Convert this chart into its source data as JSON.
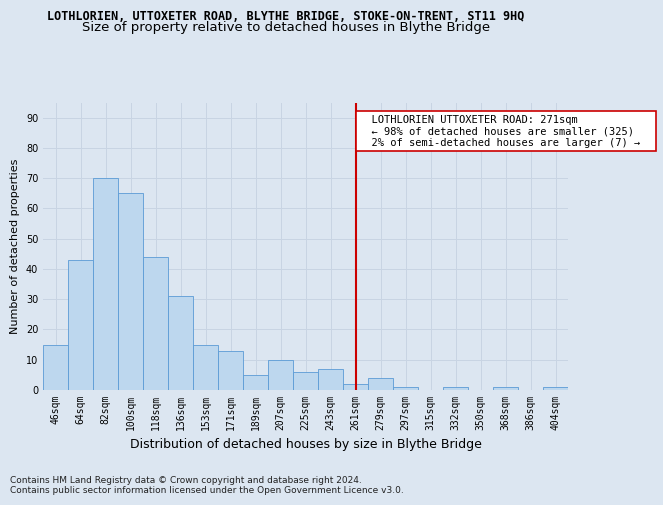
{
  "title": "LOTHLORIEN, UTTOXETER ROAD, BLYTHE BRIDGE, STOKE-ON-TRENT, ST11 9HQ",
  "subtitle": "Size of property relative to detached houses in Blythe Bridge",
  "xlabel": "Distribution of detached houses by size in Blythe Bridge",
  "ylabel": "Number of detached properties",
  "categories": [
    "46sqm",
    "64sqm",
    "82sqm",
    "100sqm",
    "118sqm",
    "136sqm",
    "153sqm",
    "171sqm",
    "189sqm",
    "207sqm",
    "225sqm",
    "243sqm",
    "261sqm",
    "279sqm",
    "297sqm",
    "315sqm",
    "332sqm",
    "350sqm",
    "368sqm",
    "386sqm",
    "404sqm"
  ],
  "values": [
    15,
    43,
    70,
    65,
    44,
    31,
    15,
    13,
    5,
    10,
    6,
    7,
    2,
    4,
    1,
    0,
    1,
    0,
    1,
    0,
    1
  ],
  "bar_color": "#bdd7ee",
  "bar_edge_color": "#5b9bd5",
  "grid_color": "#c8d4e3",
  "background_color": "#dce6f1",
  "annotation_text": "  LOTHLORIEN UTTOXETER ROAD: 271sqm  \n  ← 98% of detached houses are smaller (325)  \n  2% of semi-detached houses are larger (7) →  ",
  "vline_color": "#cc0000",
  "annotation_box_color": "#ffffff",
  "annotation_box_edge": "#cc0000",
  "ylim": [
    0,
    95
  ],
  "yticks": [
    0,
    10,
    20,
    30,
    40,
    50,
    60,
    70,
    80,
    90
  ],
  "footer": "Contains HM Land Registry data © Crown copyright and database right 2024.\nContains public sector information licensed under the Open Government Licence v3.0.",
  "title_fontsize": 8.5,
  "subtitle_fontsize": 9.5,
  "xlabel_fontsize": 9,
  "ylabel_fontsize": 8,
  "tick_fontsize": 7,
  "annotation_fontsize": 7.5,
  "footer_fontsize": 6.5
}
